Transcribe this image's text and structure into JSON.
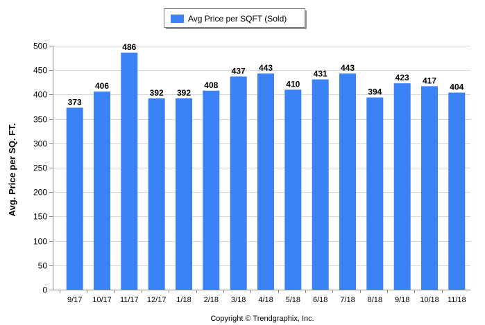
{
  "chart_data": {
    "type": "bar",
    "categories": [
      "9/17",
      "10/17",
      "11/17",
      "12/17",
      "1/18",
      "2/18",
      "3/18",
      "4/18",
      "5/18",
      "6/18",
      "7/18",
      "8/18",
      "9/18",
      "10/18",
      "11/18"
    ],
    "series": [
      {
        "name": "Avg Price per SQFT (Sold)",
        "values": [
          373,
          406,
          486,
          392,
          392,
          408,
          437,
          443,
          410,
          431,
          443,
          394,
          423,
          417,
          404
        ]
      }
    ],
    "ylabel": "Avg. Price per SQ. FT.",
    "xlabel": "",
    "ylim": [
      0,
      500
    ],
    "yticks": [
      0,
      50,
      100,
      150,
      200,
      250,
      300,
      350,
      400,
      450,
      500
    ],
    "grid": true,
    "legend_position": "top-center",
    "bar_color": "#3b82f6",
    "data_labels": true
  },
  "footer": {
    "copyright": "Copyright © Trendgraphix, Inc."
  }
}
